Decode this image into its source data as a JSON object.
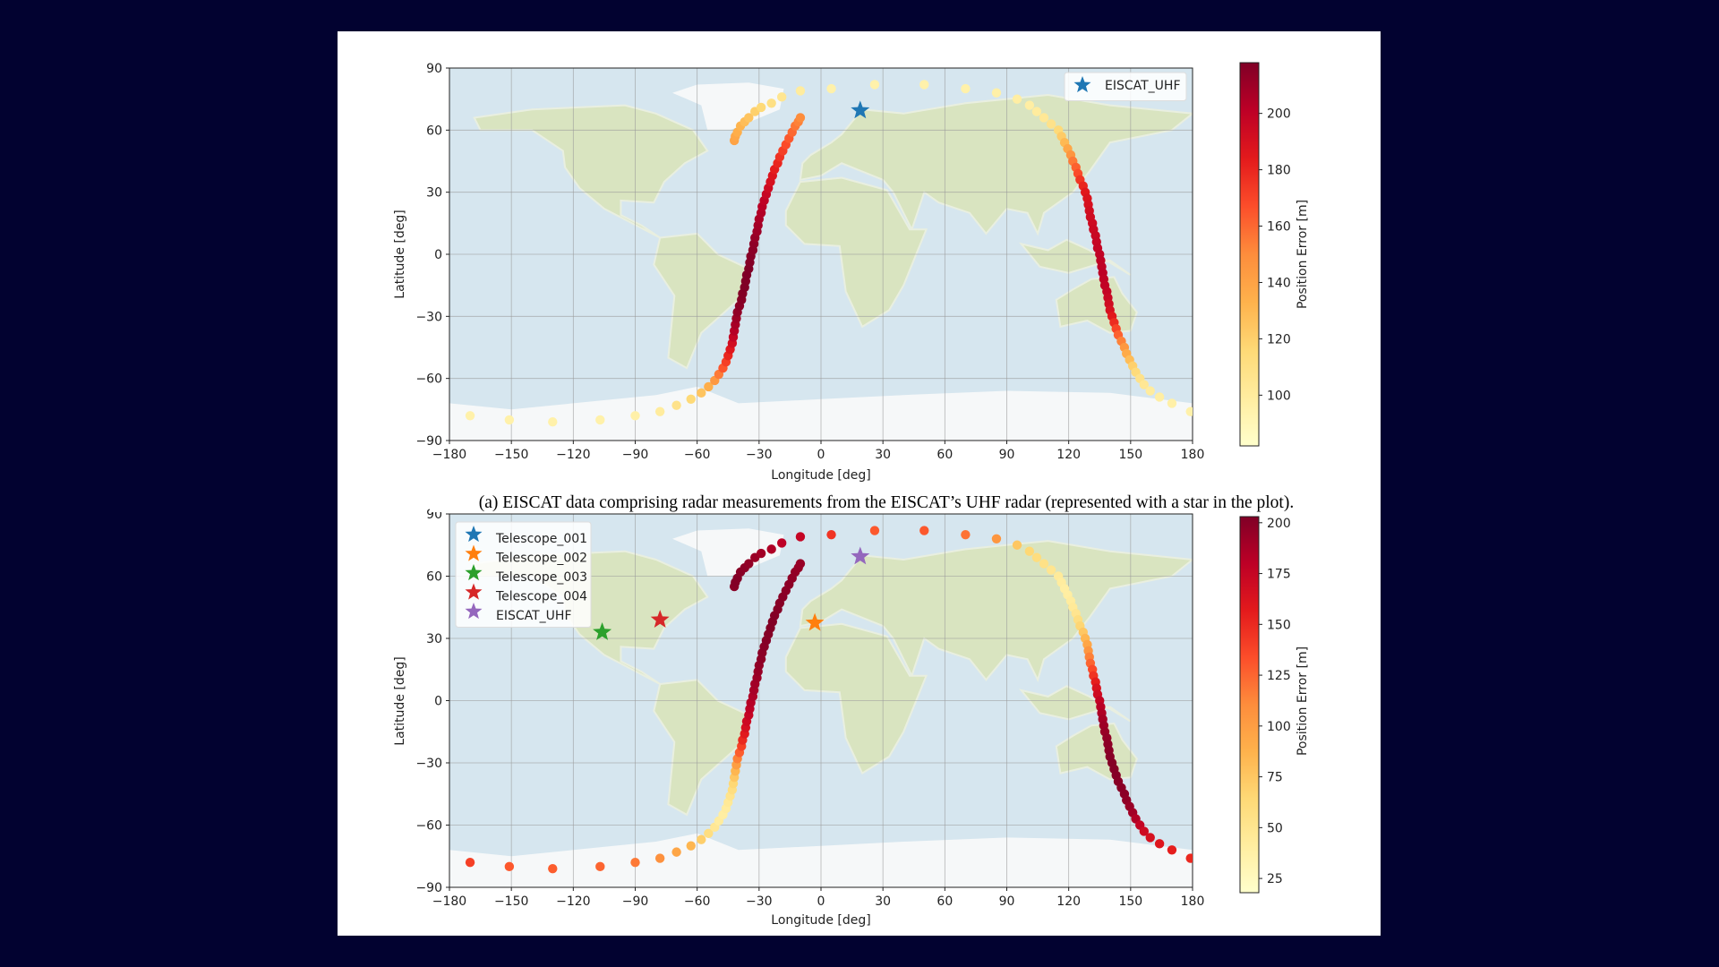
{
  "caption": "(a) EISCAT data comprising radar measurements from the EISCAT’s UHF radar (represented with a star in the plot).",
  "colormap": [
    "#ffffcc",
    "#ffeda0",
    "#fed976",
    "#feb24c",
    "#fd8d3c",
    "#fc4e2a",
    "#e31a1c",
    "#bd0026",
    "#800026"
  ],
  "chart_data": [
    {
      "type": "scatter",
      "xlabel": "Longitude [deg]",
      "ylabel": "Latitude [deg]",
      "xlim": [
        -180,
        180
      ],
      "ylim": [
        -90,
        90
      ],
      "xticks": [
        -180,
        -150,
        -120,
        -90,
        -60,
        -30,
        0,
        30,
        60,
        90,
        120,
        150,
        180
      ],
      "yticks": [
        -90,
        -60,
        -30,
        0,
        30,
        60,
        90
      ],
      "xtick_labels": [
        "−180",
        "−150",
        "−120",
        "−90",
        "−60",
        "−30",
        "0",
        "30",
        "60",
        "90",
        "120",
        "150",
        "180"
      ],
      "ytick_labels": [
        "−90",
        "−60",
        "−30",
        "0",
        "30",
        "60",
        "90"
      ],
      "grid": true,
      "background": "world map",
      "colorbar": {
        "label": "Position Error [m]",
        "range": [
          82,
          218
        ],
        "ticks": [
          100,
          120,
          140,
          160,
          180,
          200
        ]
      },
      "legend": {
        "placement": "top-right",
        "entries": [
          {
            "name": "EISCAT_UHF",
            "color": "#1f77b4"
          }
        ]
      },
      "stations": [
        {
          "name": "EISCAT_UHF",
          "lon": 19,
          "lat": 69.5,
          "color": "#1f77b4"
        }
      ],
      "track": {
        "lon": [
          -42,
          -41.5,
          -40.5,
          -39,
          -37,
          -35,
          -32,
          -29,
          -24,
          -19,
          -10,
          5,
          26,
          50,
          70,
          85,
          95,
          101,
          104.5,
          108,
          111.5,
          115,
          116.5,
          118,
          119.5,
          121,
          122,
          123.5,
          124.5,
          125.5,
          127,
          128,
          129,
          129.5,
          130,
          130.5,
          131.5,
          132,
          133,
          133.5,
          134,
          135,
          135.5,
          136,
          136.5,
          137,
          137.5,
          138.5,
          139,
          139.5,
          140,
          141,
          142,
          143,
          144,
          145.5,
          147,
          148,
          149.5,
          151,
          152.5,
          154.5,
          156.5,
          159.5,
          164,
          170,
          179,
          -170,
          -151,
          -130,
          -107,
          -90,
          -78,
          -70,
          -63,
          -58,
          -54.5,
          -51.5,
          -49.5,
          -47.5,
          -46,
          -45,
          -44,
          -43,
          -42.5,
          -42,
          -41.5,
          -41,
          -40.5,
          -39.5,
          -38.5,
          -38,
          -37,
          -36.5,
          -36,
          -35,
          -34.5,
          -34,
          -33,
          -32.5,
          -32,
          -31,
          -30.5,
          -30,
          -29,
          -28.5,
          -27.5,
          -26.5,
          -25.5,
          -24.5,
          -23.5,
          -22.5,
          -21,
          -20,
          -18.5,
          -17,
          -15.5,
          -14,
          -12.5,
          -11,
          -10
        ],
        "lat": [
          55,
          57,
          59,
          62,
          64,
          66,
          69,
          71,
          73,
          76,
          79,
          80,
          82,
          82,
          80,
          78,
          75,
          72,
          69,
          66,
          63,
          60,
          57,
          54,
          51,
          48,
          45,
          42,
          39,
          36,
          33,
          30,
          27,
          24,
          21,
          18,
          15,
          12,
          9,
          6,
          3,
          0,
          -3,
          -6,
          -9,
          -12,
          -15,
          -18,
          -21,
          -24,
          -27,
          -30,
          -33,
          -36,
          -39,
          -42,
          -45,
          -48,
          -51,
          -54,
          -57,
          -60,
          -63,
          -66,
          -69,
          -72,
          -76,
          -78,
          -80,
          -81,
          -80,
          -78,
          -76,
          -73,
          -70,
          -67,
          -64,
          -61,
          -58,
          -55,
          -52,
          -49,
          -46,
          -43,
          -40,
          -37,
          -34,
          -31,
          -28,
          -25,
          -22,
          -19,
          -16,
          -13,
          -10,
          -7,
          -4,
          -1,
          2,
          5,
          8,
          11,
          14,
          17,
          20,
          23,
          26,
          29,
          32,
          35,
          38,
          41,
          44,
          47,
          50,
          53,
          56,
          59,
          62,
          64,
          66
        ],
        "error": [
          140,
          138,
          135,
          132,
          128,
          125,
          120,
          115,
          110,
          105,
          100,
          95,
          95,
          95,
          95,
          96,
          98,
          98,
          100,
          103,
          108,
          115,
          122,
          130,
          138,
          146,
          155,
          162,
          168,
          175,
          180,
          185,
          188,
          190,
          192,
          193,
          194,
          195,
          196,
          197,
          198,
          199,
          200,
          200,
          201,
          200,
          199,
          198,
          196,
          193,
          190,
          185,
          178,
          170,
          162,
          153,
          145,
          136,
          128,
          120,
          114,
          108,
          104,
          100,
          98,
          96,
          95,
          95,
          95,
          95,
          95,
          96,
          100,
          108,
          115,
          125,
          135,
          145,
          155,
          165,
          172,
          180,
          186,
          192,
          198,
          203,
          207,
          210,
          213,
          215,
          216,
          217,
          218,
          218,
          218,
          218,
          217,
          216,
          215,
          214,
          212,
          210,
          208,
          206,
          204,
          202,
          200,
          197,
          194,
          190,
          187,
          183,
          180,
          176,
          172,
          168,
          164,
          160,
          156,
          153,
          150
        ]
      }
    },
    {
      "type": "scatter",
      "xlabel": "Longitude [deg]",
      "ylabel": "Latitude [deg]",
      "xlim": [
        -180,
        180
      ],
      "ylim": [
        -90,
        90
      ],
      "xticks": [
        -180,
        -150,
        -120,
        -90,
        -60,
        -30,
        0,
        30,
        60,
        90,
        120,
        150,
        180
      ],
      "yticks": [
        -90,
        -60,
        -30,
        0,
        30,
        60,
        90
      ],
      "xtick_labels": [
        "−180",
        "−150",
        "−120",
        "−90",
        "−60",
        "−30",
        "0",
        "30",
        "60",
        "90",
        "120",
        "150",
        "180"
      ],
      "ytick_labels": [
        "−90",
        "−60",
        "−30",
        "0",
        "30",
        "60",
        "90"
      ],
      "grid": true,
      "background": "world map",
      "colorbar": {
        "label": "Position Error [m]",
        "range": [
          18,
          203
        ],
        "ticks": [
          25,
          50,
          75,
          100,
          125,
          150,
          175,
          200
        ]
      },
      "legend": {
        "placement": "top-left",
        "entries": [
          {
            "name": "Telescope_001",
            "color": "#1f77b4"
          },
          {
            "name": "Telescope_002",
            "color": "#ff7f0e"
          },
          {
            "name": "Telescope_003",
            "color": "#2ca02c"
          },
          {
            "name": "Telescope_004",
            "color": "#d62728"
          },
          {
            "name": "EISCAT_UHF",
            "color": "#9467bd"
          }
        ]
      },
      "stations": [
        {
          "name": "Telescope_002",
          "lon": -3,
          "lat": 37.5,
          "color": "#ff7f0e"
        },
        {
          "name": "Telescope_003",
          "lon": -106,
          "lat": 33,
          "color": "#2ca02c"
        },
        {
          "name": "Telescope_004",
          "lon": -78,
          "lat": 39,
          "color": "#d62728"
        },
        {
          "name": "EISCAT_UHF",
          "lon": 19,
          "lat": 69.5,
          "color": "#9467bd"
        }
      ],
      "track": {
        "lon": [
          -42,
          -41.5,
          -40.5,
          -39,
          -37,
          -35,
          -32,
          -29,
          -24,
          -19,
          -10,
          5,
          26,
          50,
          70,
          85,
          95,
          101,
          104.5,
          108,
          111.5,
          115,
          116.5,
          118,
          119.5,
          121,
          122,
          123.5,
          124.5,
          125.5,
          127,
          128,
          129,
          129.5,
          130,
          130.5,
          131.5,
          132,
          133,
          133.5,
          134,
          135,
          135.5,
          136,
          136.5,
          137,
          137.5,
          138.5,
          139,
          139.5,
          140,
          141,
          142,
          143,
          144,
          145.5,
          147,
          148,
          149.5,
          151,
          152.5,
          154.5,
          156.5,
          159.5,
          164,
          170,
          179,
          -170,
          -151,
          -130,
          -107,
          -90,
          -78,
          -70,
          -63,
          -58,
          -54.5,
          -51.5,
          -49.5,
          -47.5,
          -46,
          -45,
          -44,
          -43,
          -42.5,
          -42,
          -41.5,
          -41,
          -40.5,
          -39.5,
          -38.5,
          -38,
          -37,
          -36.5,
          -36,
          -35,
          -34.5,
          -34,
          -33,
          -32.5,
          -32,
          -31,
          -30.5,
          -30,
          -29,
          -28.5,
          -27.5,
          -26.5,
          -25.5,
          -24.5,
          -23.5,
          -22.5,
          -21,
          -20,
          -18.5,
          -17,
          -15.5,
          -14,
          -12.5,
          -11,
          -10
        ],
        "lat": [
          55,
          57,
          59,
          62,
          64,
          66,
          69,
          71,
          73,
          76,
          79,
          80,
          82,
          82,
          80,
          78,
          75,
          72,
          69,
          66,
          63,
          60,
          57,
          54,
          51,
          48,
          45,
          42,
          39,
          36,
          33,
          30,
          27,
          24,
          21,
          18,
          15,
          12,
          9,
          6,
          3,
          0,
          -3,
          -6,
          -9,
          -12,
          -15,
          -18,
          -21,
          -24,
          -27,
          -30,
          -33,
          -36,
          -39,
          -42,
          -45,
          -48,
          -51,
          -54,
          -57,
          -60,
          -63,
          -66,
          -69,
          -72,
          -76,
          -78,
          -80,
          -81,
          -80,
          -78,
          -76,
          -73,
          -70,
          -67,
          -64,
          -61,
          -58,
          -55,
          -52,
          -49,
          -46,
          -43,
          -40,
          -37,
          -34,
          -31,
          -28,
          -25,
          -22,
          -19,
          -16,
          -13,
          -10,
          -7,
          -4,
          -1,
          2,
          5,
          8,
          11,
          14,
          17,
          20,
          23,
          26,
          29,
          32,
          35,
          38,
          41,
          44,
          47,
          50,
          53,
          56,
          59,
          62,
          64,
          66
        ],
        "error": [
          200,
          202,
          202,
          200,
          198,
          196,
          193,
          190,
          185,
          180,
          175,
          145,
          130,
          130,
          120,
          105,
          75,
          65,
          60,
          55,
          50,
          45,
          42,
          40,
          40,
          42,
          45,
          50,
          58,
          66,
          75,
          85,
          95,
          105,
          115,
          125,
          135,
          145,
          155,
          163,
          170,
          176,
          181,
          185,
          189,
          192,
          194,
          196,
          198,
          199,
          200,
          201,
          201,
          201,
          200,
          200,
          199,
          197,
          194,
          190,
          184,
          176,
          170,
          165,
          160,
          155,
          150,
          140,
          130,
          128,
          125,
          118,
          108,
          95,
          85,
          70,
          58,
          48,
          42,
          40,
          42,
          46,
          52,
          58,
          65,
          75,
          85,
          100,
          115,
          128,
          140,
          150,
          158,
          165,
          170,
          175,
          179,
          182,
          185,
          188,
          190,
          192,
          194,
          196,
          198,
          199,
          200,
          201,
          201,
          202,
          202,
          202,
          201,
          200,
          200,
          199,
          198,
          197,
          196,
          195,
          194
        ]
      }
    }
  ]
}
